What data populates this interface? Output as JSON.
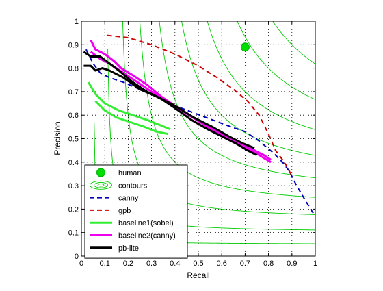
{
  "chart_data": {
    "type": "line",
    "xlabel": "Recall",
    "ylabel": "Precision",
    "xlim": [
      0,
      1
    ],
    "ylim": [
      0,
      1
    ],
    "xticks": [
      "0",
      "0.1",
      "0.2",
      "0.3",
      "0.4",
      "0.5",
      "0.6",
      "0.7",
      "0.8",
      "0.9",
      "1"
    ],
    "yticks": [
      "0",
      "0.1",
      "0.2",
      "0.3",
      "0.4",
      "0.5",
      "0.6",
      "0.7",
      "0.8",
      "0.9",
      "1"
    ],
    "grid": true,
    "legend_position": "bottom-left",
    "contour_levels": [
      0.1,
      0.2,
      0.3,
      0.4,
      0.5,
      0.6,
      0.7,
      0.8,
      0.9
    ],
    "contour_color": "#00cc00",
    "series": [
      {
        "name": "human",
        "color": "#00dd00",
        "style": "marker",
        "points": [
          [
            0.7,
            0.89
          ]
        ]
      },
      {
        "name": "contours",
        "color": "#00cc00",
        "style": "contour",
        "points": []
      },
      {
        "name": "canny",
        "color": "#0000bb",
        "style": "dashed",
        "points": [
          [
            0.02,
            0.88
          ],
          [
            0.05,
            0.82
          ],
          [
            0.08,
            0.78
          ],
          [
            0.12,
            0.76
          ],
          [
            0.18,
            0.74
          ],
          [
            0.25,
            0.71
          ],
          [
            0.32,
            0.68
          ],
          [
            0.4,
            0.64
          ],
          [
            0.48,
            0.61
          ],
          [
            0.56,
            0.58
          ],
          [
            0.64,
            0.55
          ],
          [
            0.7,
            0.53
          ],
          [
            0.76,
            0.49
          ],
          [
            0.82,
            0.44
          ],
          [
            0.86,
            0.4
          ],
          [
            0.89,
            0.36
          ],
          [
            0.92,
            0.3
          ],
          [
            0.95,
            0.25
          ],
          [
            0.98,
            0.2
          ],
          [
            1.0,
            0.17
          ]
        ]
      },
      {
        "name": "gpb",
        "color": "#cc0000",
        "style": "dashed",
        "points": [
          [
            0.11,
            0.94
          ],
          [
            0.2,
            0.93
          ],
          [
            0.3,
            0.9
          ],
          [
            0.4,
            0.86
          ],
          [
            0.5,
            0.81
          ],
          [
            0.58,
            0.76
          ],
          [
            0.65,
            0.71
          ],
          [
            0.71,
            0.66
          ],
          [
            0.76,
            0.6
          ],
          [
            0.8,
            0.52
          ],
          [
            0.83,
            0.45
          ],
          [
            0.86,
            0.41
          ],
          [
            0.88,
            0.38
          ],
          [
            0.9,
            0.34
          ]
        ]
      },
      {
        "name": "baseline1(sobel)",
        "color": "#33ee33",
        "style": "solid",
        "points": [
          [
            0.03,
            0.74
          ],
          [
            0.06,
            0.69
          ],
          [
            0.1,
            0.65
          ],
          [
            0.16,
            0.62
          ],
          [
            0.22,
            0.6
          ],
          [
            0.28,
            0.58
          ],
          [
            0.33,
            0.56
          ],
          [
            0.38,
            0.54
          ]
        ]
      },
      {
        "name": "baseline1(sobel)",
        "color": "#33ee33",
        "style": "solid",
        "points": [
          [
            0.06,
            0.66
          ],
          [
            0.1,
            0.62
          ],
          [
            0.15,
            0.59
          ],
          [
            0.21,
            0.57
          ],
          [
            0.27,
            0.55
          ],
          [
            0.32,
            0.53
          ],
          [
            0.37,
            0.52
          ]
        ]
      },
      {
        "name": "baseline2(canny)",
        "color": "#ee00ee",
        "style": "solid",
        "points": [
          [
            0.04,
            0.92
          ],
          [
            0.06,
            0.88
          ],
          [
            0.1,
            0.86
          ],
          [
            0.14,
            0.83
          ],
          [
            0.17,
            0.8
          ],
          [
            0.22,
            0.77
          ],
          [
            0.28,
            0.73
          ],
          [
            0.34,
            0.68
          ],
          [
            0.4,
            0.64
          ],
          [
            0.48,
            0.59
          ],
          [
            0.55,
            0.55
          ],
          [
            0.62,
            0.51
          ],
          [
            0.68,
            0.48
          ],
          [
            0.74,
            0.45
          ],
          [
            0.78,
            0.43
          ],
          [
            0.81,
            0.41
          ]
        ]
      },
      {
        "name": "baseline2(canny)",
        "color": "#ee00ee",
        "style": "solid",
        "points": [
          [
            0.04,
            0.87
          ],
          [
            0.08,
            0.84
          ],
          [
            0.12,
            0.82
          ],
          [
            0.18,
            0.78
          ],
          [
            0.24,
            0.74
          ],
          [
            0.3,
            0.7
          ],
          [
            0.38,
            0.65
          ],
          [
            0.46,
            0.6
          ],
          [
            0.54,
            0.55
          ],
          [
            0.62,
            0.5
          ],
          [
            0.7,
            0.46
          ],
          [
            0.76,
            0.43
          ],
          [
            0.81,
            0.4
          ]
        ]
      },
      {
        "name": "pb-lite",
        "color": "#000000",
        "style": "solid",
        "points": [
          [
            0.01,
            0.87
          ],
          [
            0.04,
            0.85
          ],
          [
            0.08,
            0.85
          ],
          [
            0.12,
            0.82
          ],
          [
            0.16,
            0.79
          ],
          [
            0.22,
            0.74
          ],
          [
            0.28,
            0.7
          ],
          [
            0.34,
            0.67
          ],
          [
            0.4,
            0.63
          ],
          [
            0.47,
            0.58
          ],
          [
            0.54,
            0.54
          ],
          [
            0.6,
            0.51
          ],
          [
            0.66,
            0.48
          ],
          [
            0.71,
            0.45
          ],
          [
            0.75,
            0.43
          ]
        ]
      },
      {
        "name": "pb-lite",
        "color": "#000000",
        "style": "solid",
        "points": [
          [
            0.01,
            0.81
          ],
          [
            0.04,
            0.81
          ],
          [
            0.06,
            0.79
          ],
          [
            0.09,
            0.8
          ],
          [
            0.12,
            0.79
          ],
          [
            0.18,
            0.76
          ],
          [
            0.25,
            0.71
          ],
          [
            0.32,
            0.68
          ],
          [
            0.4,
            0.64
          ],
          [
            0.48,
            0.59
          ],
          [
            0.56,
            0.55
          ],
          [
            0.63,
            0.51
          ],
          [
            0.69,
            0.48
          ],
          [
            0.74,
            0.46
          ]
        ]
      }
    ],
    "legend": [
      {
        "label": "human",
        "style": "marker",
        "color": "#00dd00"
      },
      {
        "label": "contours",
        "style": "contour",
        "color": "#00cc00"
      },
      {
        "label": "canny",
        "style": "dashed",
        "color": "#0000bb"
      },
      {
        "label": "gpb",
        "style": "dashed",
        "color": "#cc0000"
      },
      {
        "label": "baseline1(sobel)",
        "style": "solid",
        "color": "#33ee33"
      },
      {
        "label": "baseline2(canny)",
        "style": "solid",
        "color": "#ee00ee"
      },
      {
        "label": "pb-lite",
        "style": "solid",
        "color": "#000000"
      }
    ]
  }
}
